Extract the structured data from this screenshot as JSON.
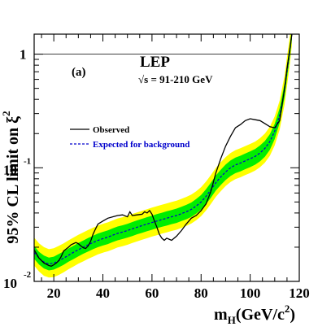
{
  "chart_data": {
    "type": "line",
    "panel_label": "(a)",
    "experiment": "LEP",
    "energy_label": "√s = 91-210 GeV",
    "xlabel_main": "m",
    "xlabel_sub": "H",
    "xlabel_rest": "(GeV/c",
    "xlabel_sup": "2",
    "xlabel_close": ")",
    "ylabel_main": "95% CL limit on ξ",
    "ylabel_sup": "2",
    "xlim": [
      12,
      120
    ],
    "ylim": [
      0.01,
      1.5
    ],
    "y_scale": "log",
    "x_ticks": [
      {
        "value": 20,
        "label": "20"
      },
      {
        "value": 40,
        "label": "40"
      },
      {
        "value": 60,
        "label": "60"
      },
      {
        "value": 80,
        "label": "80"
      },
      {
        "value": 100,
        "label": "100"
      },
      {
        "value": 120,
        "label": "120"
      }
    ],
    "y_ticks": [
      {
        "value": 1,
        "base": "1",
        "exp": ""
      },
      {
        "value": 0.1,
        "base": "10",
        "exp": "-1"
      },
      {
        "value": 0.01,
        "base": "10",
        "exp": "-2"
      }
    ],
    "reference_line": 1,
    "legend": [
      {
        "label": "Observed",
        "color": "#000000",
        "style": "solid"
      },
      {
        "label": "Expected for background",
        "color": "#0000cc",
        "style": "dashed"
      }
    ],
    "colors": {
      "band_2sigma": "#ffff00",
      "band_1sigma": "#00ee00",
      "observed": "#000000",
      "expected": "#0000cc"
    },
    "x": [
      12,
      14,
      16,
      18,
      20,
      22,
      24,
      26,
      28,
      30,
      32,
      34,
      36,
      38,
      40,
      42,
      44,
      46,
      48,
      50,
      52,
      54,
      56,
      58,
      60,
      62,
      64,
      66,
      68,
      70,
      72,
      74,
      76,
      78,
      80,
      82,
      84,
      86,
      88,
      90,
      92,
      94,
      96,
      98,
      100,
      102,
      104,
      106,
      108,
      110,
      112,
      114,
      115,
      116,
      117
    ],
    "expected": [
      0.018,
      0.016,
      0.0148,
      0.0142,
      0.0145,
      0.0152,
      0.016,
      0.017,
      0.018,
      0.019,
      0.02,
      0.021,
      0.022,
      0.023,
      0.0238,
      0.0245,
      0.0255,
      0.0265,
      0.0272,
      0.028,
      0.029,
      0.03,
      0.031,
      0.032,
      0.033,
      0.034,
      0.035,
      0.036,
      0.037,
      0.038,
      0.0395,
      0.041,
      0.043,
      0.046,
      0.05,
      0.056,
      0.064,
      0.074,
      0.083,
      0.092,
      0.1,
      0.106,
      0.11,
      0.115,
      0.12,
      0.126,
      0.135,
      0.148,
      0.17,
      0.21,
      0.29,
      0.48,
      0.7,
      1.0,
      1.5
    ],
    "band_1sigma_low": [
      0.0158,
      0.0141,
      0.013,
      0.0125,
      0.0127,
      0.0133,
      0.014,
      0.0149,
      0.0157,
      0.0166,
      0.0175,
      0.0183,
      0.0192,
      0.02,
      0.0207,
      0.0213,
      0.0222,
      0.023,
      0.0236,
      0.0243,
      0.0251,
      0.026,
      0.0268,
      0.0277,
      0.0285,
      0.0294,
      0.0302,
      0.031,
      0.0319,
      0.0327,
      0.034,
      0.0352,
      0.0369,
      0.0394,
      0.0428,
      0.0478,
      0.0545,
      0.063,
      0.0705,
      0.078,
      0.0847,
      0.0897,
      0.093,
      0.0972,
      0.1014,
      0.1064,
      0.114,
      0.125,
      0.144,
      0.179,
      0.249,
      0.418,
      0.616,
      0.89,
      1.35
    ],
    "band_1sigma_high": [
      0.0206,
      0.0182,
      0.0169,
      0.0162,
      0.0165,
      0.0174,
      0.0183,
      0.0195,
      0.0206,
      0.0218,
      0.0229,
      0.0241,
      0.0252,
      0.0264,
      0.0273,
      0.0281,
      0.0293,
      0.0304,
      0.0312,
      0.0321,
      0.0333,
      0.0345,
      0.0356,
      0.0368,
      0.0379,
      0.0391,
      0.0402,
      0.0414,
      0.0425,
      0.0437,
      0.0454,
      0.0472,
      0.0495,
      0.053,
      0.0577,
      0.0647,
      0.074,
      0.0856,
      0.0961,
      0.1066,
      0.116,
      0.123,
      0.1277,
      0.1335,
      0.1394,
      0.1464,
      0.157,
      0.1721,
      0.1975,
      0.2437,
      0.336,
      0.554,
      0.805,
      1.14,
      1.7
    ],
    "band_2sigma_low": [
      0.0138,
      0.0122,
      0.0112,
      0.0108,
      0.0109,
      0.0114,
      0.012,
      0.0128,
      0.0135,
      0.0143,
      0.015,
      0.0158,
      0.0165,
      0.0173,
      0.0179,
      0.0184,
      0.0191,
      0.0199,
      0.0204,
      0.021,
      0.0218,
      0.0225,
      0.0233,
      0.024,
      0.0248,
      0.0255,
      0.0263,
      0.027,
      0.0278,
      0.0285,
      0.0296,
      0.0308,
      0.0323,
      0.0345,
      0.0375,
      0.042,
      0.048,
      0.0555,
      0.0622,
      0.069,
      0.075,
      0.0795,
      0.0825,
      0.0862,
      0.09,
      0.0945,
      0.1012,
      0.111,
      0.1275,
      0.1575,
      0.2175,
      0.36,
      0.525,
      0.76,
      1.2
    ],
    "band_2sigma_high": [
      0.0243,
      0.0216,
      0.02,
      0.0192,
      0.0196,
      0.0205,
      0.0216,
      0.023,
      0.0243,
      0.0257,
      0.027,
      0.0284,
      0.0297,
      0.0311,
      0.0321,
      0.0331,
      0.0344,
      0.0358,
      0.0367,
      0.0378,
      0.0392,
      0.0405,
      0.0419,
      0.0432,
      0.0446,
      0.0459,
      0.0473,
      0.0486,
      0.05,
      0.0513,
      0.0533,
      0.0554,
      0.0581,
      0.0621,
      0.0675,
      0.0756,
      0.0864,
      0.0999,
      0.1121,
      0.1242,
      0.135,
      0.1431,
      0.1485,
      0.1553,
      0.162,
      0.1701,
      0.1823,
      0.1998,
      0.2295,
      0.2835,
      0.3915,
      0.648,
      0.945,
      1.35,
      2.0
    ],
    "observed_x": [
      12,
      14,
      16,
      18,
      19,
      20,
      21,
      22,
      23,
      24,
      26,
      27,
      28,
      29,
      30,
      31,
      32,
      33,
      34,
      35,
      36,
      37,
      38,
      40,
      42,
      44,
      46,
      48,
      50,
      51,
      52,
      54,
      56,
      57,
      58,
      59,
      60,
      61,
      62,
      63,
      64,
      65,
      66,
      68,
      70,
      72,
      74,
      75,
      76,
      78,
      80,
      82,
      84,
      86,
      88,
      90,
      92,
      94,
      96,
      98,
      100,
      102,
      104,
      106,
      108,
      110,
      112,
      114,
      115,
      116,
      117
    ],
    "observed": [
      0.019,
      0.016,
      0.0145,
      0.0138,
      0.0136,
      0.014,
      0.0145,
      0.0152,
      0.0165,
      0.0185,
      0.02,
      0.021,
      0.0215,
      0.022,
      0.0215,
      0.0205,
      0.0198,
      0.0195,
      0.0205,
      0.0225,
      0.026,
      0.029,
      0.032,
      0.034,
      0.036,
      0.037,
      0.038,
      0.0385,
      0.037,
      0.041,
      0.038,
      0.0385,
      0.039,
      0.041,
      0.04,
      0.042,
      0.039,
      0.034,
      0.03,
      0.026,
      0.024,
      0.023,
      0.024,
      0.023,
      0.025,
      0.028,
      0.032,
      0.034,
      0.036,
      0.038,
      0.042,
      0.048,
      0.062,
      0.09,
      0.12,
      0.155,
      0.19,
      0.225,
      0.24,
      0.26,
      0.27,
      0.265,
      0.26,
      0.245,
      0.23,
      0.225,
      0.26,
      0.5,
      0.75,
      1.05,
      1.5
    ]
  }
}
